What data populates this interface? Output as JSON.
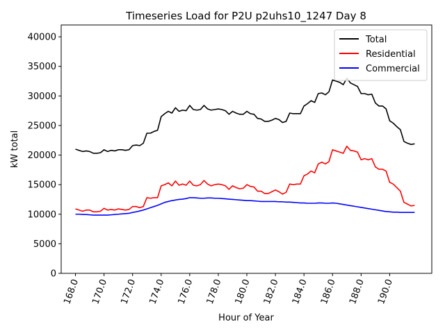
{
  "chart_data": {
    "type": "line",
    "title": "Timeseries Load for P2U p2uhs10_1247  Day 8",
    "xlabel": "Hour of Year",
    "ylabel": "kW total",
    "xlim": [
      167.0,
      192.95
    ],
    "ylim": [
      0,
      42000
    ],
    "x_ticks": [
      168,
      170,
      172,
      174,
      176,
      178,
      180,
      182,
      184,
      186,
      188,
      190
    ],
    "x_tick_labels": [
      "168.0",
      "170.0",
      "172.0",
      "174.0",
      "176.0",
      "178.0",
      "180.0",
      "182.0",
      "184.0",
      "186.0",
      "188.0",
      "190.0"
    ],
    "y_ticks": [
      0,
      5000,
      10000,
      15000,
      20000,
      25000,
      30000,
      35000,
      40000
    ],
    "y_tick_labels": [
      "0",
      "5000",
      "10000",
      "15000",
      "20000",
      "25000",
      "30000",
      "35000",
      "40000"
    ],
    "legend_position": "top-right",
    "x_start": 168.0,
    "x_step": 0.25,
    "series": [
      {
        "name": "Total",
        "color": "#000000",
        "values": [
          21000,
          20800,
          20600,
          20700,
          20600,
          20300,
          20300,
          20400,
          20900,
          20600,
          20800,
          20700,
          20900,
          20900,
          20800,
          20900,
          21600,
          21700,
          21600,
          22000,
          23700,
          23700,
          24000,
          24200,
          26500,
          27000,
          27400,
          27100,
          28000,
          27400,
          27600,
          27500,
          28400,
          27700,
          27600,
          27700,
          28400,
          27800,
          27600,
          27700,
          27800,
          27700,
          27500,
          26900,
          27400,
          27100,
          26900,
          26900,
          27400,
          27000,
          26900,
          26200,
          26100,
          25700,
          25700,
          25900,
          26200,
          26000,
          25500,
          25700,
          27100,
          27000,
          27000,
          27000,
          28300,
          28700,
          29200,
          28900,
          30400,
          30500,
          30200,
          30700,
          32700,
          32500,
          32300,
          31900,
          33000,
          32200,
          31900,
          31600,
          30400,
          30400,
          30200,
          30300,
          28800,
          28300,
          28300,
          27800,
          25800,
          25400,
          24800,
          24300,
          22300,
          22000,
          21800,
          21900
        ]
      },
      {
        "name": "Residential",
        "color": "#ff0000",
        "values": [
          10900,
          10700,
          10500,
          10700,
          10700,
          10400,
          10400,
          10500,
          11000,
          10700,
          10800,
          10700,
          10900,
          10800,
          10700,
          10800,
          11300,
          11300,
          11100,
          11300,
          12800,
          12700,
          12800,
          12800,
          14800,
          15000,
          15300,
          14800,
          15600,
          14900,
          15100,
          14900,
          15600,
          14900,
          14800,
          15000,
          15700,
          15100,
          14800,
          15000,
          15100,
          15000,
          14800,
          14200,
          14800,
          14500,
          14300,
          14400,
          15000,
          14700,
          14600,
          13900,
          13900,
          13500,
          13500,
          13800,
          14100,
          13800,
          13400,
          13700,
          15100,
          15000,
          15100,
          15100,
          16500,
          16800,
          17300,
          17000,
          18500,
          18800,
          18500,
          18900,
          20900,
          20700,
          20500,
          20300,
          21500,
          20800,
          20700,
          20500,
          19200,
          19400,
          19200,
          19400,
          18000,
          17600,
          17600,
          17300,
          15400,
          15100,
          14500,
          13900,
          12000,
          11700,
          11400,
          11500
        ]
      },
      {
        "name": "Commercial",
        "color": "#0000ff",
        "values": [
          10000,
          10000,
          9950,
          9950,
          9900,
          9850,
          9850,
          9850,
          9850,
          9850,
          9900,
          9950,
          10000,
          10050,
          10100,
          10150,
          10300,
          10400,
          10550,
          10700,
          10900,
          11100,
          11300,
          11500,
          11750,
          12000,
          12150,
          12300,
          12400,
          12500,
          12550,
          12650,
          12800,
          12800,
          12750,
          12700,
          12700,
          12750,
          12750,
          12700,
          12700,
          12650,
          12600,
          12550,
          12500,
          12450,
          12400,
          12350,
          12300,
          12300,
          12250,
          12200,
          12150,
          12150,
          12150,
          12150,
          12150,
          12100,
          12100,
          12050,
          12050,
          12000,
          11950,
          11900,
          11900,
          11850,
          11850,
          11850,
          11900,
          11900,
          11850,
          11850,
          11900,
          11850,
          11750,
          11650,
          11550,
          11450,
          11350,
          11250,
          11150,
          11050,
          10950,
          10850,
          10750,
          10650,
          10550,
          10450,
          10400,
          10350,
          10350,
          10300,
          10300,
          10300,
          10300,
          10300
        ]
      }
    ]
  }
}
